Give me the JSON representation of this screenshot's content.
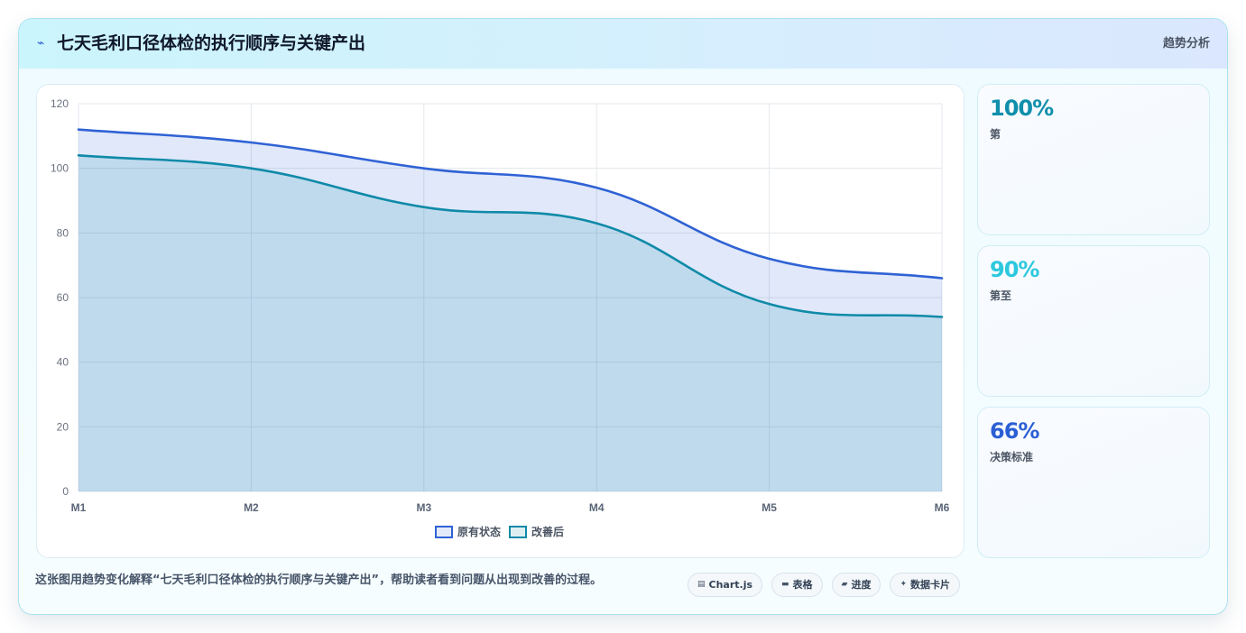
{
  "header": {
    "icon": "⌁",
    "icon_name": "trend-icon",
    "title": "七天毛利口径体检的执行顺序与关键产出",
    "tag": "趋势分析"
  },
  "chart_data": {
    "type": "line",
    "categories": [
      "M1",
      "M2",
      "M3",
      "M4",
      "M5",
      "M6"
    ],
    "series": [
      {
        "name": "原有状态",
        "values": [
          112,
          108,
          100,
          94,
          72,
          66
        ],
        "color": "#2f62d4"
      },
      {
        "name": "改善后",
        "values": [
          104,
          100,
          88,
          83,
          58,
          54
        ],
        "color": "#0f8aa8"
      }
    ],
    "ylim": [
      0,
      120
    ],
    "yticks": [
      0,
      20,
      40,
      60,
      80,
      100,
      120
    ],
    "area_fill": true,
    "grid": true,
    "legend": "bottom"
  },
  "stats": [
    {
      "value": "100%",
      "label": "第",
      "color": "#0f8fab"
    },
    {
      "value": "90%",
      "label": "第至",
      "color": "#2dc8de"
    },
    {
      "value": "66%",
      "label": "决策标准",
      "color": "#2c5fd4"
    }
  ],
  "footer": {
    "caption": "这张图用趋势变化解释“七天毛利口径体检的执行顺序与关键产出”，帮助读者看到问题从出现到改善的过程。",
    "pills": [
      {
        "icon": "▤",
        "icon_name": "chart-icon",
        "label": "Chart.js"
      },
      {
        "icon": "▬",
        "icon_name": "table-icon",
        "label": "表格"
      },
      {
        "icon": "▰",
        "icon_name": "progress-icon",
        "label": "进度"
      },
      {
        "icon": "✦",
        "icon_name": "sparkle-icon",
        "label": "数据卡片"
      }
    ]
  },
  "colors": {
    "accent": "#2f62d4",
    "card_border": "#a9e2ef",
    "header_start": "#cbf5fc",
    "header_end": "#dbe7fe"
  }
}
